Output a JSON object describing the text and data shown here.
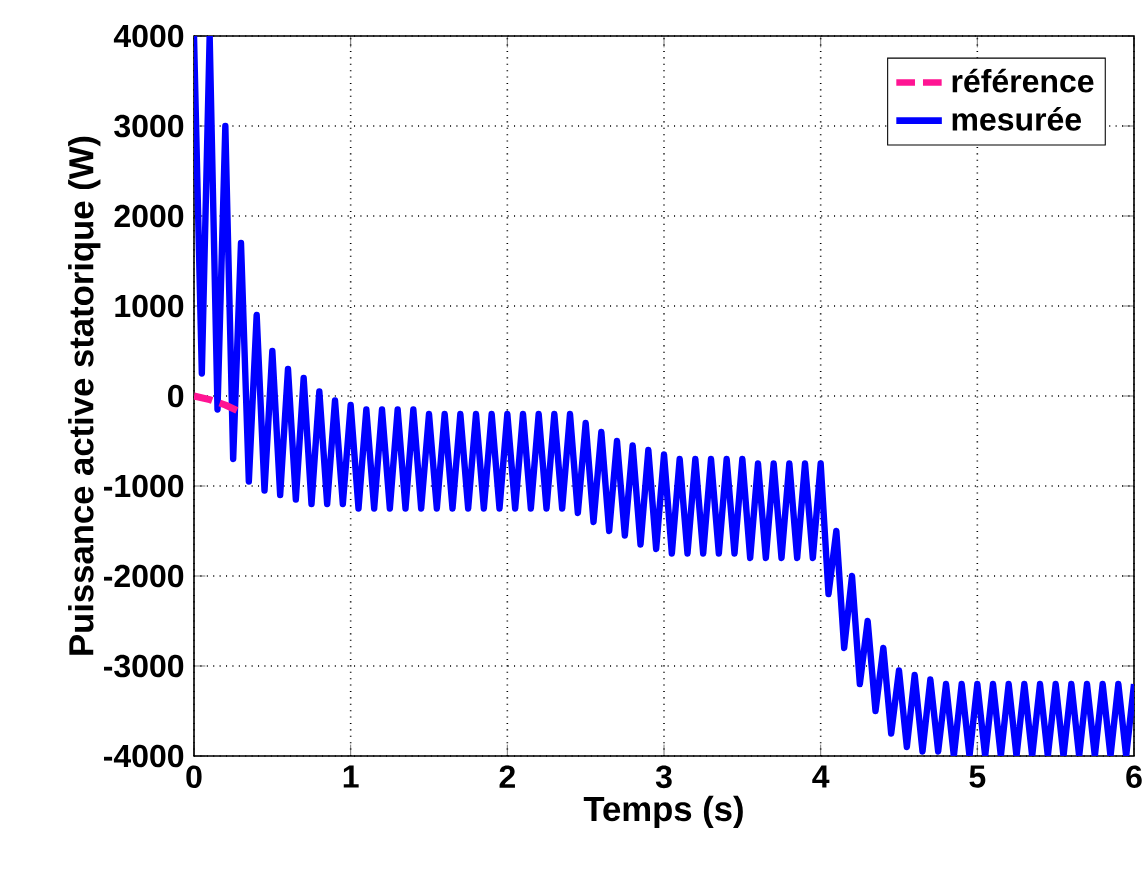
{
  "chart_data": {
    "type": "line",
    "xlabel": "Temps (s)",
    "ylabel": "Puissance active statorique (W)",
    "xlim": [
      0,
      6
    ],
    "ylim": [
      -4000,
      4000
    ],
    "xticks": [
      0,
      1,
      2,
      3,
      4,
      5,
      6
    ],
    "yticks": [
      -4000,
      -3000,
      -2000,
      -1000,
      0,
      1000,
      2000,
      3000,
      4000
    ],
    "grid": true,
    "legend": "top right",
    "series": [
      {
        "name": "référence",
        "color": "#ff1493",
        "line_style": "dashed",
        "x": [
          0,
          0.1,
          0.2,
          0.3
        ],
        "values": [
          0,
          -40,
          -100,
          -180
        ]
      },
      {
        "name": "mesurée",
        "color": "#0000ff",
        "line_style": "solid",
        "x": [
          0,
          0.05,
          0.1,
          0.15,
          0.2,
          0.25,
          0.3,
          0.35,
          0.4,
          0.45,
          0.5,
          0.55,
          0.6,
          0.65,
          0.7,
          0.75,
          0.8,
          0.85,
          0.9,
          0.95,
          1,
          1.05,
          1.1,
          1.15,
          1.2,
          1.25,
          1.3,
          1.35,
          1.4,
          1.45,
          1.5,
          1.55,
          1.6,
          1.65,
          1.7,
          1.75,
          1.8,
          1.85,
          1.9,
          1.95,
          2,
          2.05,
          2.1,
          2.15,
          2.2,
          2.25,
          2.3,
          2.35,
          2.4,
          2.45,
          2.5,
          2.55,
          2.6,
          2.65,
          2.7,
          2.75,
          2.8,
          2.85,
          2.9,
          2.95,
          3,
          3.05,
          3.1,
          3.15,
          3.2,
          3.25,
          3.3,
          3.35,
          3.4,
          3.45,
          3.5,
          3.55,
          3.6,
          3.65,
          3.7,
          3.75,
          3.8,
          3.85,
          3.9,
          3.95,
          4,
          4.05,
          4.1,
          4.15,
          4.2,
          4.25,
          4.3,
          4.35,
          4.4,
          4.45,
          4.5,
          4.55,
          4.6,
          4.65,
          4.7,
          4.75,
          4.8,
          4.85,
          4.9,
          4.95,
          5,
          5.05,
          5.1,
          5.15,
          5.2,
          5.25,
          5.3,
          5.35,
          5.4,
          5.45,
          5.5,
          5.55,
          5.6,
          5.65,
          5.7,
          5.75,
          5.8,
          5.85,
          5.9,
          5.95,
          6
        ],
        "values": [
          4000,
          250,
          4000,
          -150,
          3000,
          -700,
          1700,
          -950,
          900,
          -1050,
          500,
          -1100,
          300,
          -1150,
          200,
          -1200,
          50,
          -1200,
          -50,
          -1200,
          -100,
          -1250,
          -150,
          -1250,
          -150,
          -1250,
          -150,
          -1250,
          -150,
          -1250,
          -200,
          -1250,
          -200,
          -1250,
          -200,
          -1250,
          -200,
          -1250,
          -200,
          -1250,
          -200,
          -1250,
          -200,
          -1250,
          -200,
          -1250,
          -200,
          -1250,
          -200,
          -1300,
          -300,
          -1400,
          -400,
          -1500,
          -500,
          -1550,
          -550,
          -1650,
          -600,
          -1700,
          -650,
          -1750,
          -700,
          -1750,
          -700,
          -1750,
          -700,
          -1750,
          -700,
          -1750,
          -700,
          -1800,
          -750,
          -1800,
          -750,
          -1800,
          -750,
          -1800,
          -750,
          -1800,
          -750,
          -2200,
          -1500,
          -2800,
          -2000,
          -3200,
          -2500,
          -3500,
          -2800,
          -3750,
          -3050,
          -3900,
          -3100,
          -3950,
          -3150,
          -3950,
          -3200,
          -4000,
          -3200,
          -4000,
          -3200,
          -4000,
          -3200,
          -4000,
          -3200,
          -4000,
          -3200,
          -4000,
          -3200,
          -4000,
          -3200,
          -4000,
          -3200,
          -4000,
          -3200,
          -4000,
          -3200,
          -4000,
          -3200,
          -4000,
          -3200
        ]
      }
    ]
  }
}
